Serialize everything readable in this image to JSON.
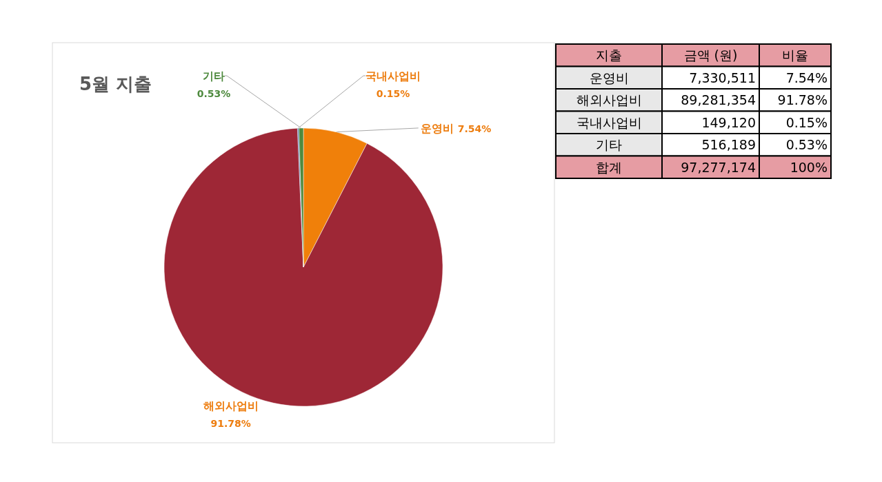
{
  "chart_data": [
    {
      "type": "pie",
      "title": "5월 지출",
      "categories": [
        "운영비",
        "해외사업비",
        "국내사업비",
        "기타"
      ],
      "values": [
        7.54,
        91.78,
        0.15,
        0.53
      ],
      "colors": [
        "#f0800a",
        "#9e2736",
        "#4a6fa5",
        "#4e8a3e"
      ],
      "value_labels": [
        "7.54%",
        "91.78%",
        "0.15%",
        "0.53%"
      ]
    },
    {
      "type": "other",
      "categories": [
        "지출",
        "운영비",
        "해외사업비",
        "국내사업비",
        "기타",
        "합계"
      ],
      "colors": [
        "#e69ca3",
        "#e8e8e8",
        "#e8e8e8",
        "#e8e8e8",
        "#e8e8e8",
        "#e69ca3"
      ],
      "cell_labels": [
        [
          "금액 (원)",
          "비율"
        ],
        [
          "7,330,511",
          "7.54%"
        ],
        [
          "89,281,354",
          "91.78%"
        ],
        [
          "149,120",
          "0.15%"
        ],
        [
          "516,189",
          "0.53%"
        ],
        [
          "97,277,174",
          "100%"
        ]
      ]
    }
  ]
}
